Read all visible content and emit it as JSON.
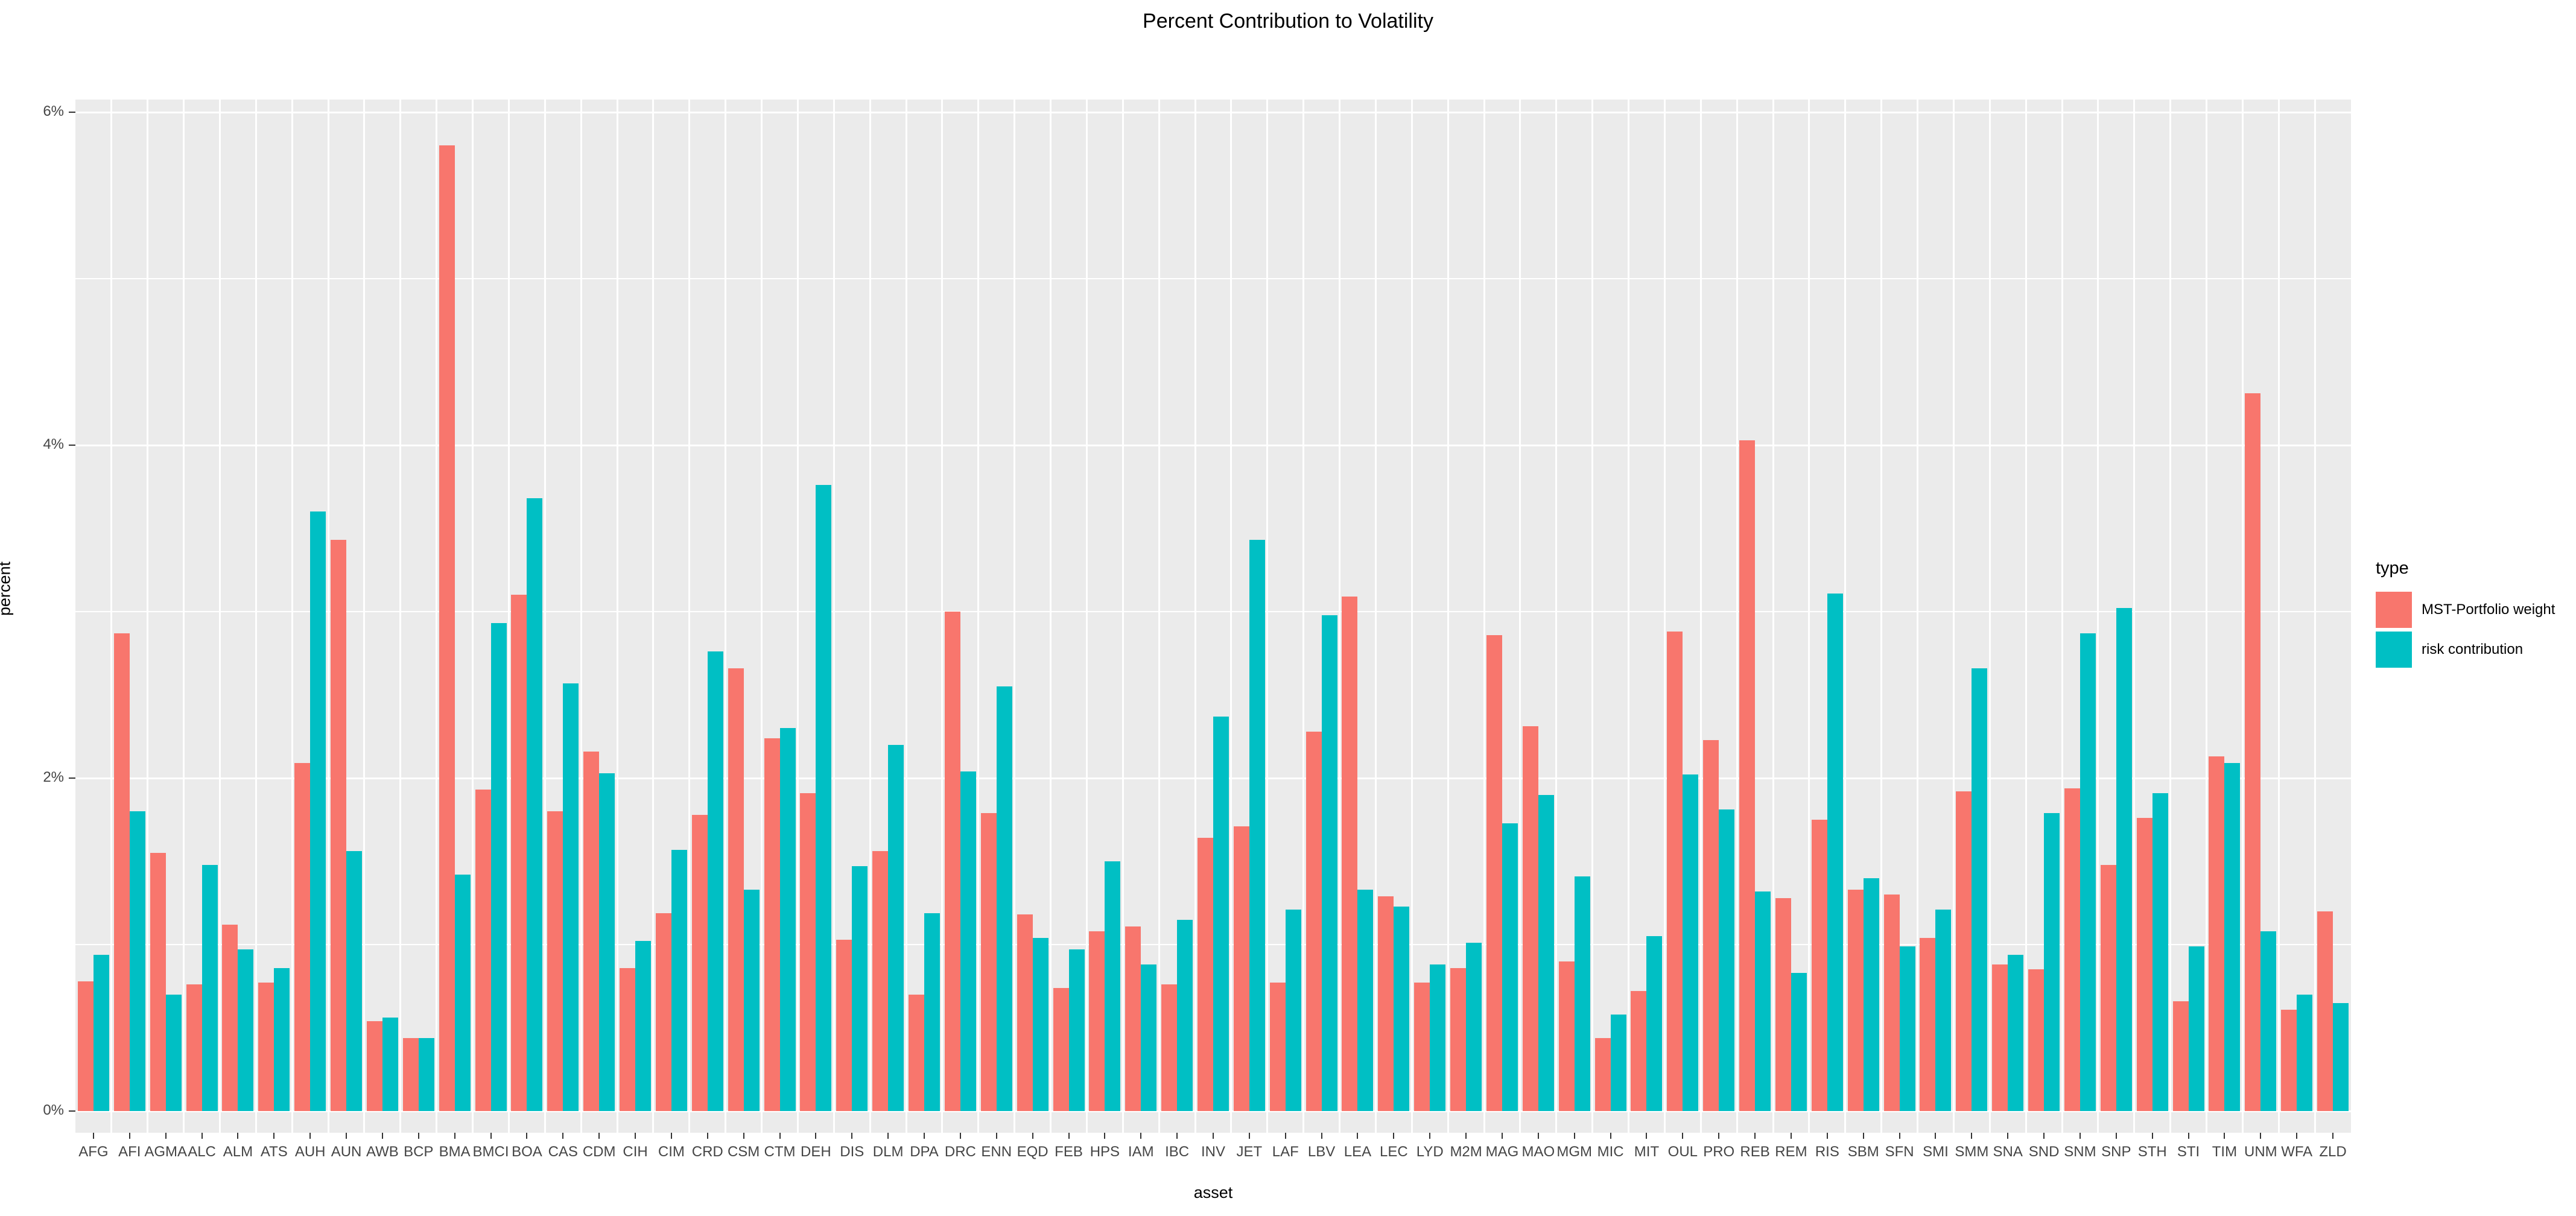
{
  "page": {
    "title": "Percent Contribution to Volatility"
  },
  "chart_data": {
    "type": "bar",
    "title": "Percent Contribution to Volatility",
    "xlabel": "asset",
    "ylabel": "percent",
    "legend_title": "type",
    "legend_position": "right",
    "grid": "on",
    "panel_bg": "#EBEBEB",
    "grid_color": "#FFFFFF",
    "ylim": [
      0,
      6.2
    ],
    "y_tick_labels": [
      "0%",
      "2%",
      "4%",
      "6%"
    ],
    "y_tick_values": [
      0,
      2,
      4,
      6
    ],
    "y_minor_values": [
      1,
      3,
      5
    ],
    "categories": [
      "AFG",
      "AFI",
      "AGMA",
      "ALC",
      "ALM",
      "ATS",
      "AUH",
      "AUN",
      "AWB",
      "BCP",
      "BMA",
      "BMCI",
      "BOA",
      "CAS",
      "CDM",
      "CIH",
      "CIM",
      "CRD",
      "CSM",
      "CTM",
      "DEH",
      "DIS",
      "DLM",
      "DPA",
      "DRC",
      "ENN",
      "EQD",
      "FEB",
      "HPS",
      "IAM",
      "IBC",
      "INV",
      "JET",
      "LAF",
      "LBV",
      "LEA",
      "LEC",
      "LYD",
      "M2M",
      "MAG",
      "MAO",
      "MGM",
      "MIC",
      "MIT",
      "OUL",
      "PRO",
      "REB",
      "REM",
      "RIS",
      "SBM",
      "SFN",
      "SMI",
      "SMM",
      "SNA",
      "SND",
      "SNM",
      "SNP",
      "STH",
      "STI",
      "TIM",
      "UNM",
      "WFA",
      "ZLD"
    ],
    "series": [
      {
        "name": "MST-Portfolio weight",
        "color": "#F8766D",
        "values": [
          0.78,
          2.87,
          1.55,
          0.76,
          1.12,
          0.77,
          2.09,
          3.43,
          0.54,
          0.44,
          5.8,
          1.93,
          3.1,
          1.8,
          2.16,
          0.86,
          1.19,
          1.78,
          2.66,
          2.24,
          1.91,
          1.03,
          1.56,
          0.7,
          3.0,
          1.79,
          1.18,
          0.74,
          1.08,
          1.11,
          0.76,
          1.64,
          1.71,
          0.77,
          2.28,
          3.09,
          1.29,
          0.77,
          0.86,
          2.86,
          2.31,
          0.9,
          0.44,
          0.72,
          2.88,
          2.23,
          4.03,
          1.28,
          1.75,
          1.33,
          1.3,
          1.04,
          1.92,
          0.88,
          0.85,
          1.94,
          1.48,
          1.76,
          0.66,
          2.13,
          4.31,
          0.61,
          1.2
        ]
      },
      {
        "name": "risk contribution",
        "color": "#00BFC4",
        "values": [
          0.94,
          1.8,
          0.7,
          1.48,
          0.97,
          0.86,
          3.6,
          1.56,
          0.56,
          0.44,
          1.42,
          2.93,
          3.68,
          2.57,
          2.03,
          1.02,
          1.57,
          2.76,
          1.33,
          2.3,
          3.76,
          1.47,
          2.2,
          1.19,
          2.04,
          2.55,
          1.04,
          0.97,
          1.5,
          0.88,
          1.15,
          2.37,
          3.43,
          1.21,
          2.98,
          1.33,
          1.23,
          0.88,
          1.01,
          1.73,
          1.9,
          1.41,
          0.58,
          1.05,
          2.02,
          1.81,
          1.32,
          0.83,
          3.11,
          1.4,
          0.99,
          1.21,
          2.66,
          0.94,
          1.79,
          2.87,
          3.02,
          1.91,
          0.99,
          2.09,
          1.08,
          0.7,
          0.65
        ]
      }
    ]
  }
}
